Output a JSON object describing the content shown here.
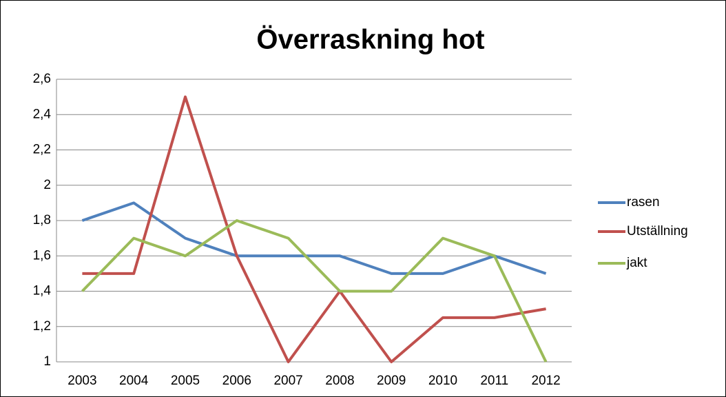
{
  "chart_data": {
    "type": "line",
    "title": "Överraskning hot",
    "categories": [
      "2003",
      "2004",
      "2005",
      "2006",
      "2007",
      "2008",
      "2009",
      "2010",
      "2011",
      "2012"
    ],
    "series": [
      {
        "name": "rasen",
        "color": "#4f81bd",
        "values": [
          1.8,
          1.9,
          1.7,
          1.6,
          1.6,
          1.6,
          1.5,
          1.5,
          1.6,
          1.5
        ]
      },
      {
        "name": "Utställning",
        "color": "#c0504d",
        "values": [
          1.5,
          1.5,
          2.5,
          1.6,
          1.0,
          1.4,
          1.0,
          1.25,
          1.25,
          1.3
        ]
      },
      {
        "name": "jakt",
        "color": "#9bbb59",
        "values": [
          1.4,
          1.7,
          1.6,
          1.8,
          1.7,
          1.4,
          1.4,
          1.7,
          1.6,
          1.0
        ]
      }
    ],
    "ylim": [
      1,
      2.6
    ],
    "yticks": [
      1,
      {
        "value": 1.2,
        "label": "1,2"
      },
      {
        "value": 1.4,
        "label": "1,4"
      },
      {
        "value": 1.6,
        "label": "1,6"
      },
      {
        "value": 1.8,
        "label": "1,8"
      },
      2,
      {
        "value": 2.2,
        "label": "2,2"
      },
      {
        "value": 2.4,
        "label": "2,4"
      },
      {
        "value": 2.6,
        "label": "2,6"
      }
    ],
    "grid": true,
    "legend": "right"
  }
}
